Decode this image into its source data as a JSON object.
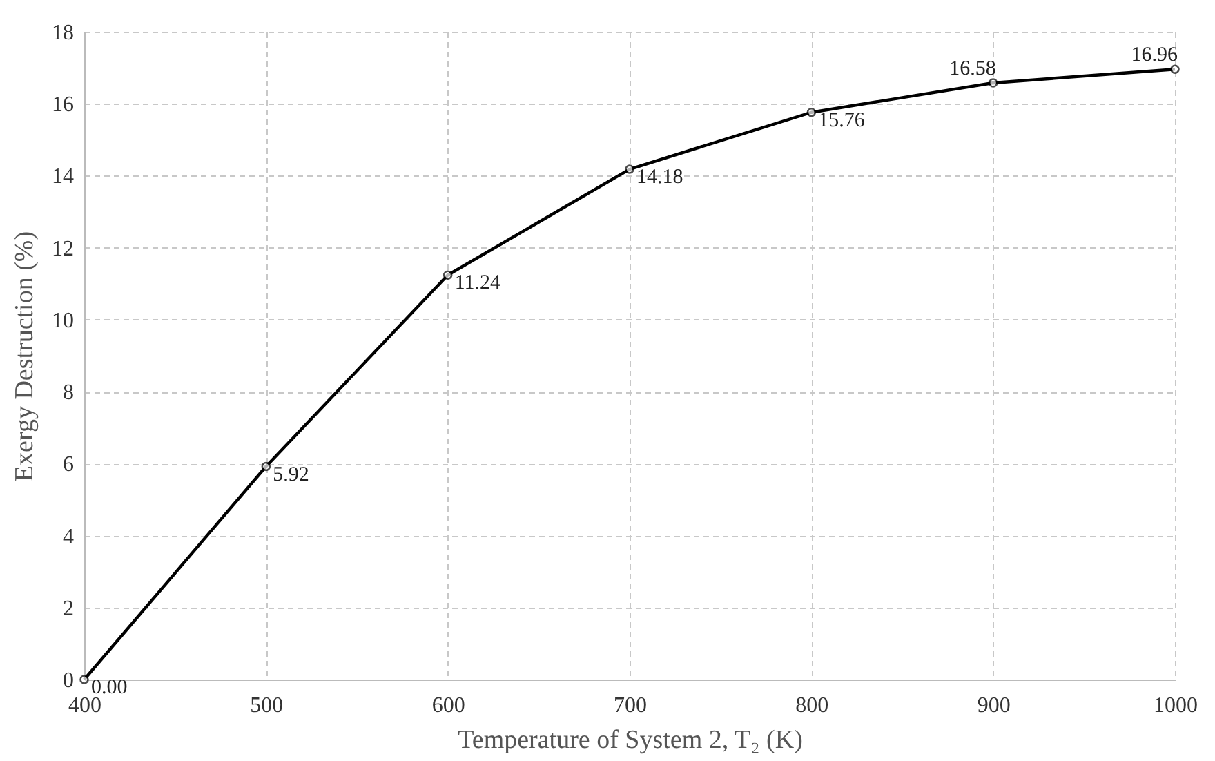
{
  "chart_data": {
    "type": "line",
    "xlabel": "Temperature of System 2, T₂ (K)",
    "ylabel": "Exergy Destruction (%)",
    "x": [
      400,
      500,
      600,
      700,
      800,
      900,
      1000
    ],
    "series": [
      {
        "color": "#000000",
        "values": [
          0,
          5.92,
          11.24,
          14.18,
          15.76,
          16.58,
          16.96
        ],
        "value_labels": [
          "0.00",
          "5.92",
          "11.24",
          "14.18",
          "15.76",
          "16.58",
          "16.96"
        ]
      }
    ],
    "xlim": [
      400,
      1000
    ],
    "xticks": [
      400,
      500,
      600,
      700,
      800,
      900,
      1000
    ],
    "ylim": [
      0,
      18
    ],
    "yticks": [
      0,
      2,
      4,
      6,
      8,
      10,
      12,
      14,
      16,
      18
    ],
    "grid": true,
    "marker": "circle",
    "line_style": "solid"
  }
}
